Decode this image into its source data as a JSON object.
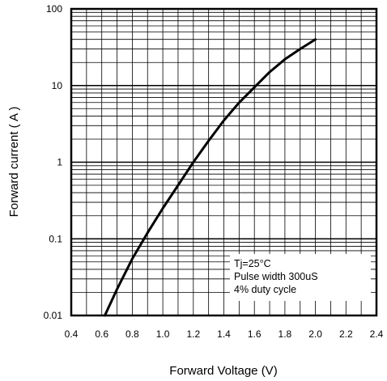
{
  "chart_data": {
    "type": "line",
    "xlabel": "Forward Voltage (V)",
    "ylabel": "Forward current ( A )",
    "xlim": [
      0.4,
      2.4
    ],
    "ylim": [
      0.01,
      100
    ],
    "y_scale": "log",
    "grid": true,
    "x_ticks": [
      "0.4",
      "0.6",
      "0.8",
      "1.0",
      "1.2",
      "1.4",
      "1.6",
      "1.8",
      "2.0",
      "2.2",
      "2.4"
    ],
    "y_ticks": [
      "0.01",
      "0.1",
      "1",
      "10",
      "100"
    ],
    "annotations": [
      "Tj=25°C",
      "Pulse width 300uS",
      "4% duty cycle"
    ],
    "series": [
      {
        "x": [
          0.62,
          0.7,
          0.8,
          0.9,
          1.0,
          1.1,
          1.2,
          1.3,
          1.4,
          1.5,
          1.6,
          1.7,
          1.8,
          1.9,
          2.0
        ],
        "y": [
          0.01,
          0.022,
          0.055,
          0.12,
          0.25,
          0.5,
          1.0,
          1.9,
          3.5,
          6.0,
          9.5,
          15,
          22,
          30,
          40
        ]
      }
    ]
  }
}
